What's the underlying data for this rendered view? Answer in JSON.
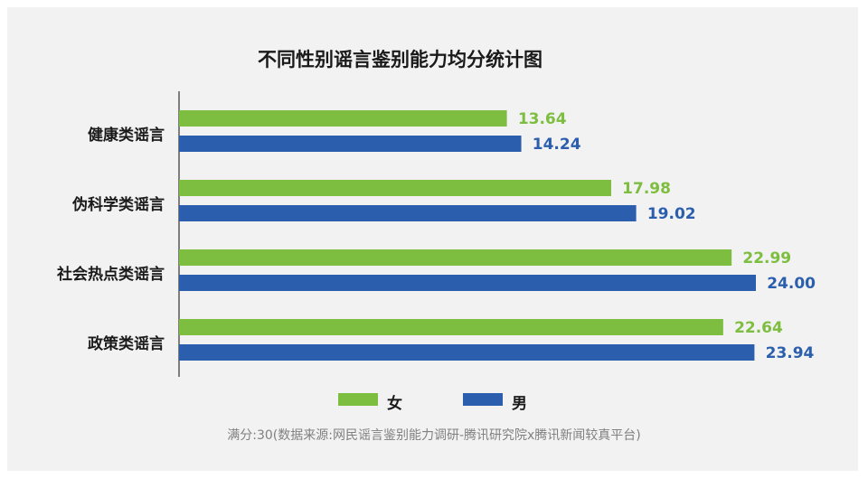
{
  "chart_data": {
    "type": "bar",
    "orientation": "horizontal",
    "title": "不同性别谣言鉴别能力均分统计图",
    "categories": [
      "健康类谣言",
      "伪科学类谣言",
      "社会热点类谣言",
      "政策类谣言"
    ],
    "series": [
      {
        "name": "女",
        "color": "#7dbd3f",
        "values": [
          13.64,
          17.98,
          22.99,
          22.64
        ],
        "labels": [
          "13.64",
          "17.98",
          "22.99",
          "22.64"
        ]
      },
      {
        "name": "男",
        "color": "#2b5fad",
        "values": [
          14.24,
          19.02,
          24.0,
          23.94
        ],
        "labels": [
          "14.24",
          "19.02",
          "24.00",
          "23.94"
        ]
      }
    ],
    "xlim": [
      0,
      24
    ],
    "grid": false,
    "legend": "bottom",
    "note": "满分:30(数据来源:网民谣言鉴别能力调研-腾讯研究院x腾讯新闻较真平台)"
  }
}
